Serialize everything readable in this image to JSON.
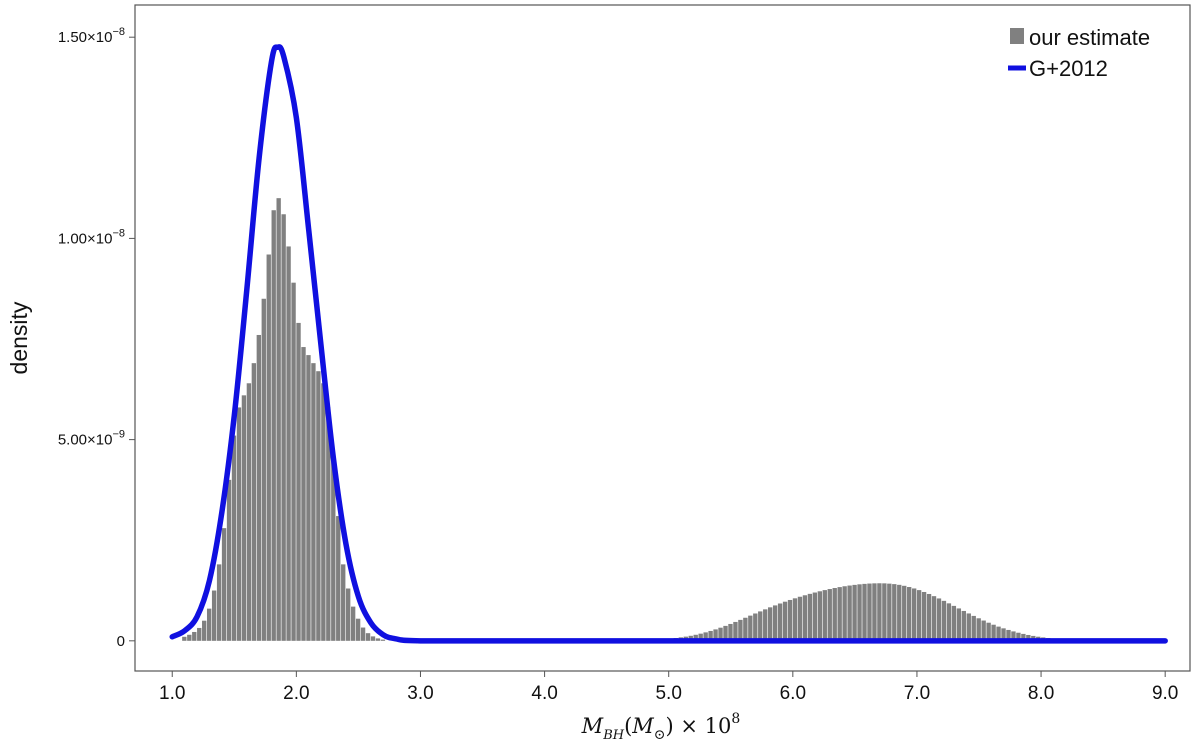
{
  "chart_data": {
    "type": "bar",
    "title": "",
    "ylabel": "density",
    "xlabel": "M_BH(M_⊙) × 10^8",
    "xlabel_parts": {
      "main": "M",
      "sub": "BH",
      "paren_open": "(",
      "paren_main": "M",
      "paren_sub": "⊙",
      "paren_close": ")",
      "times": " × 10",
      "sup": "8"
    },
    "xlim": [
      0.7,
      9.2
    ],
    "ylim": [
      -7.5e-10,
      1.58e-08
    ],
    "x_ticks": [
      1.0,
      2.0,
      3.0,
      4.0,
      5.0,
      6.0,
      7.0,
      8.0,
      9.0
    ],
    "x_tick_labels": [
      "1.0",
      "2.0",
      "3.0",
      "4.0",
      "5.0",
      "6.0",
      "7.0",
      "8.0",
      "9.0"
    ],
    "y_ticks": [
      0,
      5e-09,
      1e-08,
      1.5e-08
    ],
    "y_tick_labels": [
      {
        "base": "0",
        "sup": ""
      },
      {
        "base": "5.00×10",
        "sup": "−9"
      },
      {
        "base": "1.00×10",
        "sup": "−8"
      },
      {
        "base": "1.50×10",
        "sup": "−8"
      }
    ],
    "grid": false,
    "legend_position": "top-right",
    "histogram": {
      "name": "our estimate",
      "color": "#808080",
      "bin_width": 0.04,
      "bins": [
        {
          "x": 1.1,
          "y": 1e-10
        },
        {
          "x": 1.14,
          "y": 1.5e-10
        },
        {
          "x": 1.18,
          "y": 2.2e-10
        },
        {
          "x": 1.22,
          "y": 3.2e-10
        },
        {
          "x": 1.26,
          "y": 5e-10
        },
        {
          "x": 1.3,
          "y": 8e-10
        },
        {
          "x": 1.34,
          "y": 1.25e-09
        },
        {
          "x": 1.38,
          "y": 1.9e-09
        },
        {
          "x": 1.42,
          "y": 2.8e-09
        },
        {
          "x": 1.46,
          "y": 4e-09
        },
        {
          "x": 1.5,
          "y": 5.1e-09
        },
        {
          "x": 1.54,
          "y": 5.8e-09
        },
        {
          "x": 1.58,
          "y": 6.1e-09
        },
        {
          "x": 1.62,
          "y": 6.4e-09
        },
        {
          "x": 1.66,
          "y": 6.9e-09
        },
        {
          "x": 1.7,
          "y": 7.6e-09
        },
        {
          "x": 1.74,
          "y": 8.5e-09
        },
        {
          "x": 1.78,
          "y": 9.6e-09
        },
        {
          "x": 1.82,
          "y": 1.07e-08
        },
        {
          "x": 1.86,
          "y": 1.1e-08
        },
        {
          "x": 1.9,
          "y": 1.06e-08
        },
        {
          "x": 1.94,
          "y": 9.8e-09
        },
        {
          "x": 1.98,
          "y": 8.9e-09
        },
        {
          "x": 2.02,
          "y": 7.9e-09
        },
        {
          "x": 2.06,
          "y": 7.3e-09
        },
        {
          "x": 2.1,
          "y": 7.1e-09
        },
        {
          "x": 2.14,
          "y": 6.9e-09
        },
        {
          "x": 2.18,
          "y": 6.7e-09
        },
        {
          "x": 2.22,
          "y": 6.4e-09
        },
        {
          "x": 2.26,
          "y": 5.8e-09
        },
        {
          "x": 2.3,
          "y": 4.6e-09
        },
        {
          "x": 2.34,
          "y": 3.1e-09
        },
        {
          "x": 2.38,
          "y": 1.9e-09
        },
        {
          "x": 2.42,
          "y": 1.3e-09
        },
        {
          "x": 2.46,
          "y": 8.5e-10
        },
        {
          "x": 2.5,
          "y": 5.5e-10
        },
        {
          "x": 2.54,
          "y": 3.3e-10
        },
        {
          "x": 2.58,
          "y": 1.9e-10
        },
        {
          "x": 2.62,
          "y": 1.1e-10
        },
        {
          "x": 2.66,
          "y": 6e-11
        },
        {
          "x": 2.7,
          "y": 3e-11
        },
        {
          "x": 4.7,
          "y": 1e-11
        },
        {
          "x": 4.74,
          "y": 1.2e-11
        },
        {
          "x": 4.78,
          "y": 1.5e-11
        },
        {
          "x": 4.82,
          "y": 1.9e-11
        },
        {
          "x": 4.86,
          "y": 2.4e-11
        },
        {
          "x": 4.9,
          "y": 3e-11
        },
        {
          "x": 4.94,
          "y": 3.7e-11
        },
        {
          "x": 4.98,
          "y": 4.6e-11
        },
        {
          "x": 5.02,
          "y": 5.7e-11
        },
        {
          "x": 5.06,
          "y": 7e-11
        },
        {
          "x": 5.1,
          "y": 8.6e-11
        },
        {
          "x": 5.14,
          "y": 1.04e-10
        },
        {
          "x": 5.18,
          "y": 1.25e-10
        },
        {
          "x": 5.22,
          "y": 1.5e-10
        },
        {
          "x": 5.26,
          "y": 1.78e-10
        },
        {
          "x": 5.3,
          "y": 2.1e-10
        },
        {
          "x": 5.34,
          "y": 2.45e-10
        },
        {
          "x": 5.38,
          "y": 2.84e-10
        },
        {
          "x": 5.42,
          "y": 3.26e-10
        },
        {
          "x": 5.46,
          "y": 3.71e-10
        },
        {
          "x": 5.5,
          "y": 4.19e-10
        },
        {
          "x": 5.54,
          "y": 4.69e-10
        },
        {
          "x": 5.58,
          "y": 5.2e-10
        },
        {
          "x": 5.62,
          "y": 5.73e-10
        },
        {
          "x": 5.66,
          "y": 6.26e-10
        },
        {
          "x": 5.7,
          "y": 6.79e-10
        },
        {
          "x": 5.74,
          "y": 7.31e-10
        },
        {
          "x": 5.78,
          "y": 7.82e-10
        },
        {
          "x": 5.82,
          "y": 8.32e-10
        },
        {
          "x": 5.86,
          "y": 8.8e-10
        },
        {
          "x": 5.9,
          "y": 9.27e-10
        },
        {
          "x": 5.94,
          "y": 9.72e-10
        },
        {
          "x": 5.98,
          "y": 1.015e-09
        },
        {
          "x": 6.02,
          "y": 1.056e-09
        },
        {
          "x": 6.06,
          "y": 1.095e-09
        },
        {
          "x": 6.1,
          "y": 1.132e-09
        },
        {
          "x": 6.14,
          "y": 1.167e-09
        },
        {
          "x": 6.18,
          "y": 1.2e-09
        },
        {
          "x": 6.22,
          "y": 1.231e-09
        },
        {
          "x": 6.26,
          "y": 1.26e-09
        },
        {
          "x": 6.3,
          "y": 1.287e-09
        },
        {
          "x": 6.34,
          "y": 1.312e-09
        },
        {
          "x": 6.38,
          "y": 1.335e-09
        },
        {
          "x": 6.42,
          "y": 1.356e-09
        },
        {
          "x": 6.46,
          "y": 1.374e-09
        },
        {
          "x": 6.5,
          "y": 1.39e-09
        },
        {
          "x": 6.54,
          "y": 1.404e-09
        },
        {
          "x": 6.58,
          "y": 1.415e-09
        },
        {
          "x": 6.62,
          "y": 1.423e-09
        },
        {
          "x": 6.66,
          "y": 1.428e-09
        },
        {
          "x": 6.7,
          "y": 1.43e-09
        },
        {
          "x": 6.74,
          "y": 1.428e-09
        },
        {
          "x": 6.78,
          "y": 1.421e-09
        },
        {
          "x": 6.82,
          "y": 1.409e-09
        },
        {
          "x": 6.86,
          "y": 1.391e-09
        },
        {
          "x": 6.9,
          "y": 1.367e-09
        },
        {
          "x": 6.94,
          "y": 1.337e-09
        },
        {
          "x": 6.98,
          "y": 1.301e-09
        },
        {
          "x": 7.02,
          "y": 1.26e-09
        },
        {
          "x": 7.06,
          "y": 1.214e-09
        },
        {
          "x": 7.1,
          "y": 1.164e-09
        },
        {
          "x": 7.14,
          "y": 1.11e-09
        },
        {
          "x": 7.18,
          "y": 1.053e-09
        },
        {
          "x": 7.22,
          "y": 9.93e-10
        },
        {
          "x": 7.26,
          "y": 9.31e-10
        },
        {
          "x": 7.3,
          "y": 8.68e-10
        },
        {
          "x": 7.34,
          "y": 8.05e-10
        },
        {
          "x": 7.38,
          "y": 7.42e-10
        },
        {
          "x": 7.42,
          "y": 6.8e-10
        },
        {
          "x": 7.46,
          "y": 6.19e-10
        },
        {
          "x": 7.5,
          "y": 5.6e-10
        },
        {
          "x": 7.54,
          "y": 5.04e-10
        },
        {
          "x": 7.58,
          "y": 4.5e-10
        },
        {
          "x": 7.62,
          "y": 4e-10
        },
        {
          "x": 7.66,
          "y": 3.53e-10
        },
        {
          "x": 7.7,
          "y": 3.1e-10
        },
        {
          "x": 7.74,
          "y": 2.7e-10
        },
        {
          "x": 7.78,
          "y": 2.34e-10
        },
        {
          "x": 7.82,
          "y": 2.01e-10
        },
        {
          "x": 7.86,
          "y": 1.72e-10
        },
        {
          "x": 7.9,
          "y": 1.45e-10
        },
        {
          "x": 7.94,
          "y": 1.22e-10
        },
        {
          "x": 7.98,
          "y": 1.02e-10
        },
        {
          "x": 8.02,
          "y": 8.4e-11
        },
        {
          "x": 8.06,
          "y": 6.9e-11
        },
        {
          "x": 8.1,
          "y": 5.6e-11
        },
        {
          "x": 8.14,
          "y": 4.5e-11
        },
        {
          "x": 8.18,
          "y": 3.6e-11
        },
        {
          "x": 8.22,
          "y": 2.8e-11
        },
        {
          "x": 8.26,
          "y": 2.2e-11
        },
        {
          "x": 8.3,
          "y": 1.7e-11
        },
        {
          "x": 8.34,
          "y": 1.3e-11
        },
        {
          "x": 8.38,
          "y": 1e-11
        }
      ]
    },
    "series": [
      {
        "name": "G+2012",
        "type": "line",
        "color": "#1010e0",
        "x": [
          1.0,
          1.1,
          1.2,
          1.3,
          1.4,
          1.5,
          1.6,
          1.7,
          1.8,
          1.85,
          1.9,
          2.0,
          2.1,
          2.2,
          2.3,
          2.4,
          2.5,
          2.6,
          2.7,
          2.8,
          3.0,
          4.0,
          5.0,
          6.0,
          7.0,
          8.0,
          9.0
        ],
        "y": [
          1e-10,
          2.5e-10,
          6e-10,
          1.5e-09,
          3.2e-09,
          5.6e-09,
          8.7e-09,
          1.2e-08,
          1.44e-08,
          1.475e-08,
          1.45e-08,
          1.3e-08,
          1.02e-08,
          7.3e-09,
          4.5e-09,
          2.4e-09,
          1.1e-09,
          4.5e-10,
          1.5e-10,
          5e-11,
          0,
          0,
          0,
          0,
          0,
          0,
          0
        ]
      }
    ],
    "legend": [
      {
        "name": "our estimate",
        "kind": "patch",
        "color": "#808080"
      },
      {
        "name": "G+2012",
        "kind": "line",
        "color": "#1010e0"
      }
    ]
  }
}
